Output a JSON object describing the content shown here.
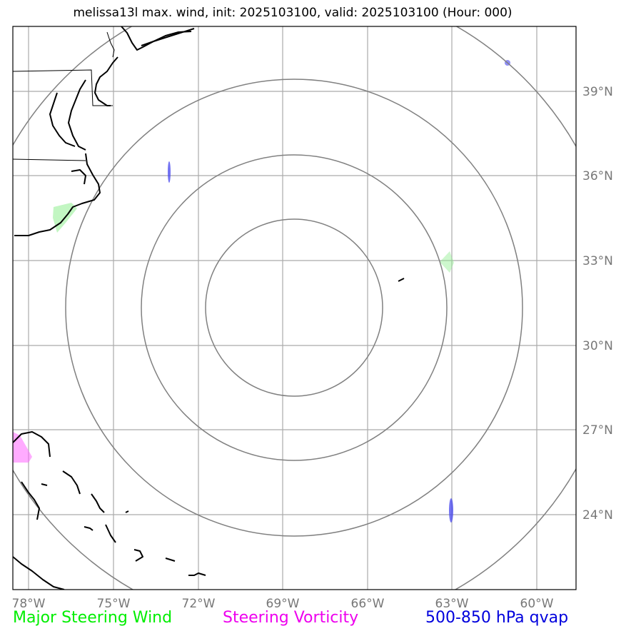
{
  "title": "melissa13l max. wind, init: 2025103100, valid: 2025103100 (Hour: 000)",
  "map": {
    "lon_ticks": [
      "78°W",
      "75°W",
      "72°W",
      "69°W",
      "66°W",
      "63°W",
      "60°W"
    ],
    "lat_ticks": [
      "39°N",
      "36°N",
      "33°N",
      "30°N",
      "27°N",
      "24°N"
    ],
    "colors": {
      "coast": "#000000",
      "grid": "#aaaaaa",
      "range_rings": "#808080",
      "steering_wind": "#90ee90",
      "steering_vorticity": "#ff66ff",
      "qvap": "#4444ee"
    }
  },
  "legend": {
    "wind": "Major Steering Wind",
    "vorticity": "Steering Vorticity",
    "qvap": "500-850 hPa qvap"
  }
}
